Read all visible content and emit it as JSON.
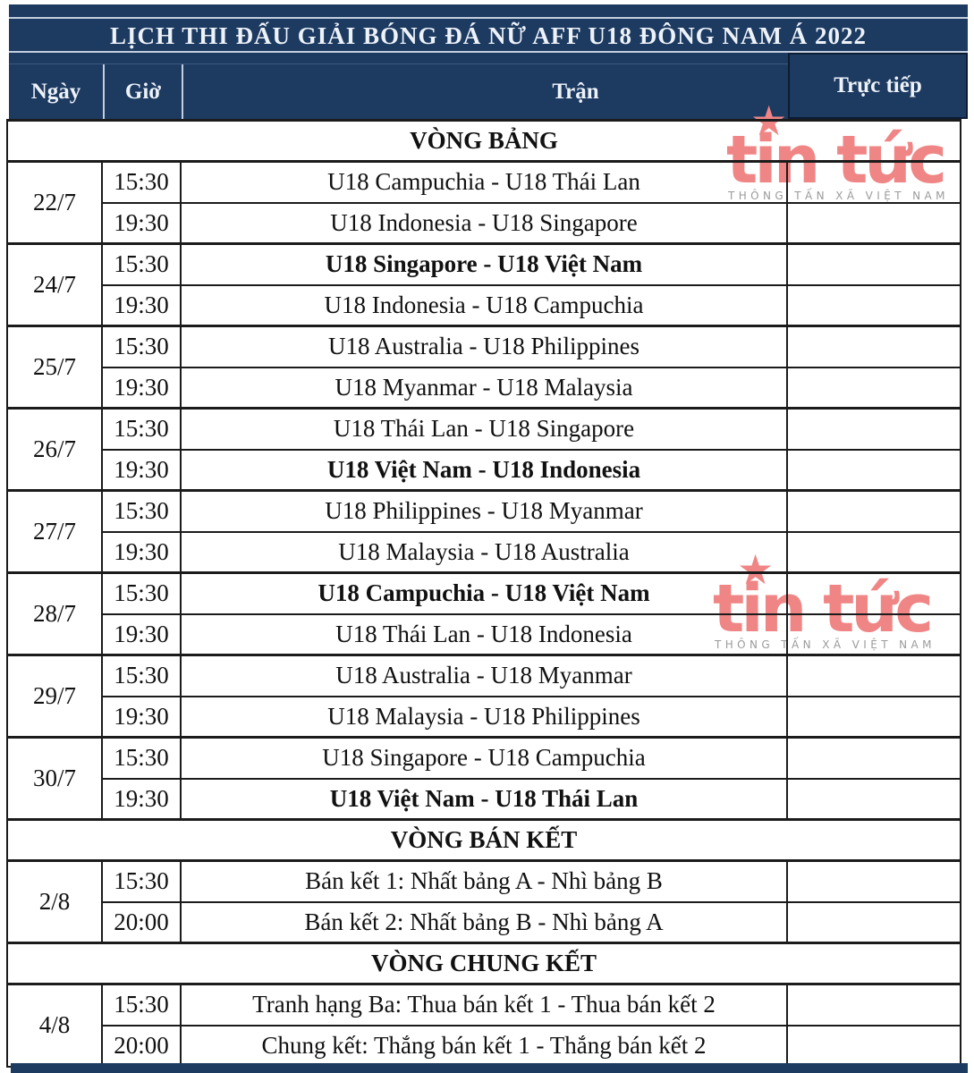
{
  "title": "LỊCH THI ĐẤU GIẢI BÓNG ĐÁ NỮ AFF U18 ĐÔNG NAM Á 2022",
  "columns": {
    "date": "Ngày",
    "time": "Giờ",
    "match": "Trận",
    "live": "Trực tiếp"
  },
  "sections": [
    {
      "name": "VÒNG BẢNG",
      "groups": [
        {
          "date": "22/7",
          "matches": [
            {
              "time": "15:30",
              "match": "U18 Campuchia - U18 Thái Lan",
              "bold": false
            },
            {
              "time": "19:30",
              "match": "U18 Indonesia - U18 Singapore",
              "bold": false
            }
          ]
        },
        {
          "date": "24/7",
          "matches": [
            {
              "time": "15:30",
              "match": "U18 Singapore - U18 Việt Nam",
              "bold": true
            },
            {
              "time": "19:30",
              "match": "U18 Indonesia - U18 Campuchia",
              "bold": false
            }
          ]
        },
        {
          "date": "25/7",
          "matches": [
            {
              "time": "15:30",
              "match": "U18 Australia - U18 Philippines",
              "bold": false
            },
            {
              "time": "19:30",
              "match": "U18 Myanmar - U18 Malaysia",
              "bold": false
            }
          ]
        },
        {
          "date": "26/7",
          "matches": [
            {
              "time": "15:30",
              "match": "U18 Thái Lan - U18 Singapore",
              "bold": false
            },
            {
              "time": "19:30",
              "match": "U18 Việt Nam - U18 Indonesia",
              "bold": true
            }
          ]
        },
        {
          "date": "27/7",
          "matches": [
            {
              "time": "15:30",
              "match": "U18 Philippines - U18 Myanmar",
              "bold": false
            },
            {
              "time": "19:30",
              "match": "U18 Malaysia - U18 Australia",
              "bold": false
            }
          ]
        },
        {
          "date": "28/7",
          "matches": [
            {
              "time": "15:30",
              "match": "U18 Campuchia - U18 Việt Nam",
              "bold": true
            },
            {
              "time": "19:30",
              "match": "U18 Thái Lan - U18 Indonesia",
              "bold": false
            }
          ]
        },
        {
          "date": "29/7",
          "matches": [
            {
              "time": "15:30",
              "match": "U18 Australia - U18 Myanmar",
              "bold": false
            },
            {
              "time": "19:30",
              "match": "U18 Malaysia - U18 Philippines",
              "bold": false
            }
          ]
        },
        {
          "date": "30/7",
          "matches": [
            {
              "time": "15:30",
              "match": "U18 Singapore - U18 Campuchia",
              "bold": false
            },
            {
              "time": "19:30",
              "match": "U18 Việt Nam - U18 Thái Lan",
              "bold": true
            }
          ]
        }
      ]
    },
    {
      "name": "VÒNG BÁN KẾT",
      "groups": [
        {
          "date": "2/8",
          "matches": [
            {
              "time": "15:30",
              "match": "Bán kết 1: Nhất bảng A - Nhì bảng B",
              "bold": false
            },
            {
              "time": "20:00",
              "match": "Bán kết 2: Nhất bảng B - Nhì bảng A",
              "bold": false
            }
          ]
        }
      ]
    },
    {
      "name": "VÒNG CHUNG KẾT",
      "groups": [
        {
          "date": "4/8",
          "matches": [
            {
              "time": "15:30",
              "match": "Tranh hạng Ba: Thua bán kết 1 - Thua bán kết 2",
              "bold": false
            },
            {
              "time": "20:00",
              "match": "Chung kết: Thắng bán kết 1 - Thắng bán kết 2",
              "bold": false
            }
          ]
        }
      ]
    }
  ],
  "watermark": {
    "logo_text": "tin tức",
    "star_icon": "★",
    "subtext": "THÔNG TẤN XÃ VIỆT NAM"
  },
  "colors": {
    "header_navy": "#1d3a61",
    "header_border_dark": "#0b1c33",
    "header_light_line": "#c3cfdf",
    "table_border": "#1b1b1b",
    "watermark_pink": "#f08585",
    "watermark_gray": "#9b9b9b"
  }
}
